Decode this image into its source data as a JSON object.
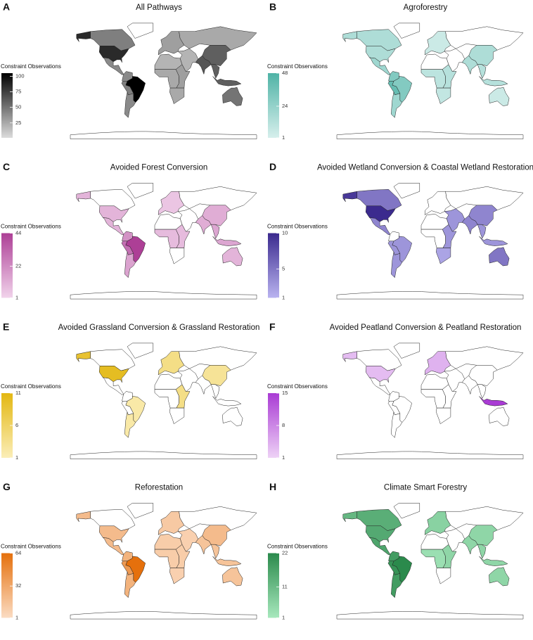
{
  "legend_title": "Constraint Observations",
  "panels": [
    {
      "label": "A",
      "title": "All Pathways",
      "lim": [
        1,
        105
      ],
      "ticks": [
        25,
        50,
        75,
        100
      ],
      "color_low": "#dcdcdc",
      "color_high": "#000000",
      "values": [
        85,
        45,
        85,
        40,
        40,
        105,
        45,
        40,
        30,
        25,
        20,
        25,
        30,
        25,
        20,
        65,
        60,
        60,
        60,
        50
      ]
    },
    {
      "label": "B",
      "title": "Agroforestry",
      "lim": [
        1,
        48
      ],
      "ticks": [
        1,
        24,
        48
      ],
      "color_low": "#d6efec",
      "color_high": "#4fb3a6",
      "values": [
        15,
        15,
        15,
        20,
        30,
        30,
        40,
        20,
        5,
        null,
        null,
        10,
        12,
        8,
        null,
        15,
        15,
        12,
        12,
        5
      ]
    },
    {
      "label": "C",
      "title": "Avoided Forest Conversion",
      "lim": [
        1,
        44
      ],
      "ticks": [
        1,
        22,
        44
      ],
      "color_low": "#f1d3eb",
      "color_high": "#ad3f96",
      "values": [
        10,
        null,
        10,
        10,
        20,
        44,
        30,
        15,
        5,
        null,
        null,
        8,
        8,
        null,
        null,
        12,
        12,
        14,
        14,
        10
      ]
    },
    {
      "label": "D",
      "title": "Avoided Wetland Conversion & Coastal Wetland Restoration",
      "lim": [
        1,
        10
      ],
      "ticks": [
        1,
        5,
        10
      ],
      "color_low": "#b9b3f0",
      "color_high": "#3b2a8e",
      "values": [
        9,
        5,
        10,
        4,
        null,
        3,
        3,
        3,
        null,
        null,
        null,
        null,
        3,
        2,
        3,
        4,
        4,
        3,
        3,
        5
      ]
    },
    {
      "label": "E",
      "title": "Avoided Grassland Conversion & Grassland Restoration",
      "lim": [
        1,
        11
      ],
      "ticks": [
        1,
        6,
        11
      ],
      "color_low": "#fbeeb8",
      "color_high": "#e3b711",
      "values": [
        9,
        null,
        10,
        null,
        null,
        2,
        null,
        2,
        4,
        null,
        null,
        null,
        4,
        null,
        null,
        null,
        3,
        null,
        null,
        null
      ]
    },
    {
      "label": "F",
      "title": "Avoided Peatland Conversion & Peatland Restoration",
      "lim": [
        1,
        15
      ],
      "ticks": [
        1,
        8,
        15
      ],
      "color_low": "#eed2f6",
      "color_high": "#a93bd4",
      "values": [
        3,
        null,
        3,
        null,
        null,
        null,
        null,
        null,
        4,
        null,
        null,
        null,
        null,
        null,
        null,
        null,
        null,
        null,
        15,
        null
      ]
    },
    {
      "label": "G",
      "title": "Reforestation",
      "lim": [
        1,
        64
      ],
      "ticks": [
        1,
        32,
        64
      ],
      "color_low": "#fbdcc3",
      "color_high": "#e5700c",
      "values": [
        20,
        null,
        20,
        20,
        25,
        64,
        40,
        25,
        12,
        null,
        10,
        10,
        10,
        8,
        8,
        15,
        20,
        15,
        15,
        15
      ]
    },
    {
      "label": "H",
      "title": "Climate Smart Forestry",
      "lim": [
        1,
        22
      ],
      "ticks": [
        1,
        11,
        22
      ],
      "color_low": "#a7e8bd",
      "color_high": "#2b8a4c",
      "values": [
        12,
        14,
        15,
        16,
        18,
        22,
        20,
        18,
        6,
        null,
        null,
        3,
        5,
        null,
        null,
        5,
        5,
        5,
        5,
        5
      ]
    }
  ]
}
